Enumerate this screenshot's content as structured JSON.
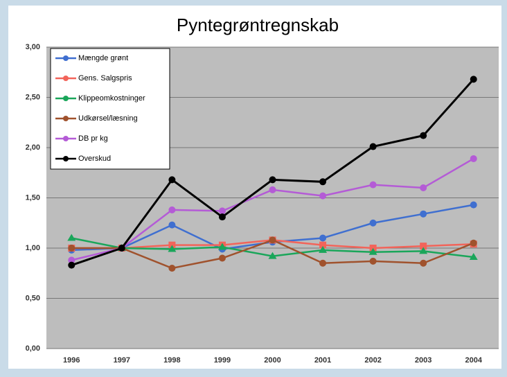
{
  "chart_data": {
    "type": "line",
    "title": "Pyntegrøntregnskab",
    "categories": [
      "1996",
      "1997",
      "1998",
      "1999",
      "2000",
      "2001",
      "2002",
      "2003",
      "2004"
    ],
    "ylim": [
      0,
      3
    ],
    "yticks": [
      {
        "value": 0,
        "label": "0,00"
      },
      {
        "value": 0.5,
        "label": "0,50"
      },
      {
        "value": 1,
        "label": "1,00"
      },
      {
        "value": 1.5,
        "label": "1,50"
      },
      {
        "value": 2,
        "label": "2,00"
      },
      {
        "value": 2.5,
        "label": "2,50"
      },
      {
        "value": 3,
        "label": "3,00"
      }
    ],
    "grid": true,
    "legend": "upper-left",
    "series": [
      {
        "name": "Mængde grønt",
        "color": "#3f6fd0",
        "values": [
          0.98,
          1.0,
          1.23,
          0.99,
          1.06,
          1.1,
          1.25,
          1.34,
          1.43
        ]
      },
      {
        "name": "Gens. Salgspris",
        "color": "#f2645a",
        "values": [
          1.0,
          1.0,
          1.03,
          1.03,
          1.08,
          1.03,
          1.0,
          1.02,
          1.04
        ]
      },
      {
        "name": "Klippeomkostninger",
        "color": "#1aa65a",
        "values": [
          1.1,
          1.0,
          0.99,
          1.01,
          0.92,
          0.98,
          0.96,
          0.97,
          0.91
        ]
      },
      {
        "name": "Udkørsel/læsning",
        "color": "#a0522d",
        "values": [
          1.0,
          1.0,
          0.8,
          0.9,
          1.08,
          0.85,
          0.87,
          0.85,
          1.05
        ]
      },
      {
        "name": "DB pr kg",
        "color": "#b45bd6",
        "values": [
          0.88,
          1.0,
          1.38,
          1.37,
          1.58,
          1.52,
          1.63,
          1.6,
          1.89
        ]
      },
      {
        "name": "Overskud",
        "color": "#000000",
        "values": [
          0.83,
          1.0,
          1.68,
          1.31,
          1.68,
          1.66,
          2.01,
          2.12,
          2.68
        ]
      }
    ]
  }
}
